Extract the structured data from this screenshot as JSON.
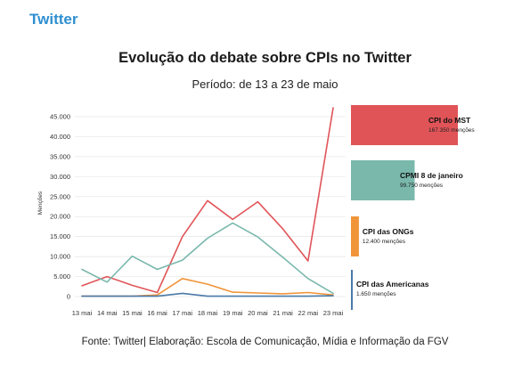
{
  "header": {
    "brand": "Twitter",
    "title": "Evolução do debate sobre CPIs no Twitter",
    "subtitle": "Período: de 13 a 23 de maio",
    "source": "Fonte: Twitter| Elaboração: Escola de Comunicação, Mídia e Informação da FGV"
  },
  "chart_data": {
    "type": "line",
    "ylabel": "Menções",
    "ylim": [
      0,
      47000
    ],
    "yticks": [
      0,
      5000,
      10000,
      15000,
      20000,
      25000,
      30000,
      35000,
      40000,
      45000
    ],
    "ytick_labels": [
      "0",
      "5.000",
      "10.000",
      "15.000",
      "20.000",
      "25.000",
      "30.000",
      "35.000",
      "40.000",
      "45.000"
    ],
    "categories": [
      "13 mai",
      "14 mai",
      "15 mai",
      "16 mai",
      "17 mai",
      "18 mai",
      "19 mai",
      "20 mai",
      "21 mai",
      "22 mai",
      "23 mai"
    ],
    "grid": true,
    "series": [
      {
        "name": "CPI do MST",
        "total_label": "167.350 menções",
        "total": 167350,
        "color": "#e05458",
        "values": [
          2700,
          5000,
          2800,
          1000,
          15000,
          24000,
          19300,
          23700,
          16900,
          8900,
          47200
        ]
      },
      {
        "name": "CPMI 8 de janeiro",
        "total_label": "99.750 menções",
        "total": 99750,
        "color": "#7ab8ac",
        "values": [
          6800,
          3600,
          10100,
          6800,
          9100,
          14600,
          18400,
          14900,
          9800,
          4500,
          800
        ]
      },
      {
        "name": "CPI das ONGs",
        "total_label": "12.400 menções",
        "total": 12400,
        "color": "#f0953a",
        "values": [
          100,
          100,
          100,
          400,
          4500,
          3100,
          1100,
          900,
          700,
          1000,
          400
        ]
      },
      {
        "name": "CPI das Americanas",
        "total_label": "1.650 menções",
        "total": 1650,
        "color": "#4a7aa8",
        "values": [
          100,
          100,
          100,
          100,
          800,
          100,
          100,
          100,
          100,
          100,
          200
        ]
      }
    ],
    "side_bars": "totals per series, shown as horizontal bars to the right"
  }
}
